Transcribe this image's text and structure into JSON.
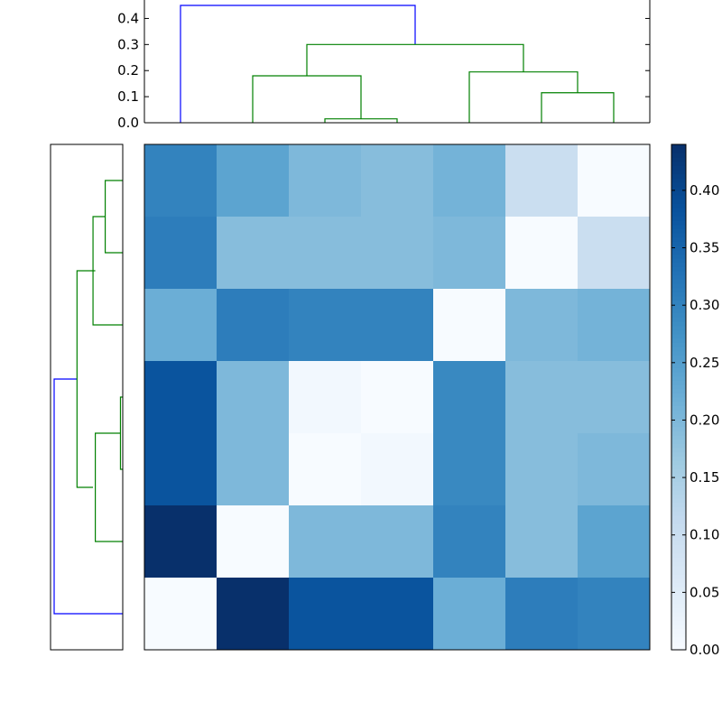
{
  "chart_data": [
    {
      "type": "dendrogram",
      "panel": "top",
      "orientation": "top",
      "y_ticks": [
        "0.0",
        "0.1",
        "0.2",
        "0.3",
        "0.4"
      ],
      "ylim": [
        0,
        0.45
      ],
      "xlim": [
        0,
        7
      ],
      "colors": {
        "above_threshold": "#0000ff",
        "cluster": "#008000"
      },
      "links": [
        {
          "x": [
            0.5,
            0.5,
            3.75,
            3.75
          ],
          "y": [
            0,
            0.45,
            0.45,
            0.3
          ],
          "color": "#0000ff"
        },
        {
          "x": [
            2.25,
            2.25,
            5.25,
            5.25
          ],
          "y": [
            0.18,
            0.3,
            0.3,
            0.195
          ],
          "color": "#008000"
        },
        {
          "x": [
            1.5,
            1.5,
            3.0,
            3.0
          ],
          "y": [
            0,
            0.18,
            0.18,
            0.015
          ],
          "color": "#008000"
        },
        {
          "x": [
            2.5,
            2.5,
            3.5,
            3.5
          ],
          "y": [
            0,
            0.015,
            0.015,
            0
          ],
          "color": "#008000"
        },
        {
          "x": [
            4.5,
            4.5,
            6.0,
            6.0
          ],
          "y": [
            0,
            0.195,
            0.195,
            0.115
          ],
          "color": "#008000"
        },
        {
          "x": [
            5.5,
            5.5,
            6.5,
            6.5
          ],
          "y": [
            0,
            0.115,
            0.115,
            0
          ],
          "color": "#008000"
        }
      ]
    },
    {
      "type": "dendrogram",
      "panel": "left",
      "orientation": "left",
      "xlim": [
        0.45,
        0
      ],
      "ylim": [
        0,
        7
      ],
      "colors": {
        "above_threshold": "#0000ff",
        "cluster": "#008000"
      },
      "links": [
        {
          "x": [
            0,
            0.45,
            0.45,
            0.3
          ],
          "y": [
            0.5,
            0.5,
            3.75,
            3.75
          ],
          "color": "#0000ff"
        },
        {
          "x": [
            0.195,
            0.3,
            0.3,
            0.18
          ],
          "y": [
            2.25,
            2.25,
            5.25,
            5.25
          ],
          "color": "#008000"
        },
        {
          "x": [
            0,
            0.18,
            0.18,
            0.015
          ],
          "y": [
            1.5,
            1.5,
            3.0,
            3.0
          ],
          "color": "#008000"
        },
        {
          "x": [
            0,
            0.015,
            0.015,
            0
          ],
          "y": [
            2.5,
            2.5,
            3.5,
            3.5
          ],
          "color": "#008000"
        },
        {
          "x": [
            0,
            0.195,
            0.195,
            0.115
          ],
          "y": [
            4.5,
            4.5,
            6.0,
            6.0
          ],
          "color": "#008000"
        },
        {
          "x": [
            0,
            0.115,
            0.115,
            0
          ],
          "y": [
            5.5,
            5.5,
            6.5,
            6.5
          ],
          "color": "#008000"
        }
      ]
    },
    {
      "type": "heatmap",
      "colormap": "Blues",
      "vmin": 0,
      "vmax": 0.44,
      "values": [
        [
          0.3,
          0.24,
          0.2,
          0.19,
          0.21,
          0.1,
          0.0
        ],
        [
          0.31,
          0.19,
          0.19,
          0.19,
          0.2,
          0.0,
          0.1
        ],
        [
          0.22,
          0.31,
          0.3,
          0.3,
          0.0,
          0.2,
          0.21
        ],
        [
          0.38,
          0.2,
          0.01,
          0.0,
          0.29,
          0.19,
          0.19
        ],
        [
          0.38,
          0.2,
          0.0,
          0.01,
          0.29,
          0.19,
          0.2
        ],
        [
          0.44,
          0.0,
          0.2,
          0.2,
          0.3,
          0.19,
          0.24
        ],
        [
          0.0,
          0.44,
          0.38,
          0.38,
          0.22,
          0.31,
          0.3
        ]
      ]
    },
    {
      "type": "colorbar",
      "colormap": "Blues",
      "ylim": [
        0,
        0.44
      ],
      "ticks": [
        {
          "v": 0.0,
          "label": "0.00"
        },
        {
          "v": 0.05,
          "label": "0.05"
        },
        {
          "v": 0.1,
          "label": "0.10"
        },
        {
          "v": 0.15,
          "label": "0.15"
        },
        {
          "v": 0.2,
          "label": "0.20"
        },
        {
          "v": 0.25,
          "label": "0.25"
        },
        {
          "v": 0.3,
          "label": "0.30"
        },
        {
          "v": 0.35,
          "label": "0.35"
        },
        {
          "v": 0.4,
          "label": "0.40"
        }
      ]
    }
  ],
  "colormap_stops": [
    [
      0.0,
      "#f7fbff"
    ],
    [
      0.125,
      "#deebf7"
    ],
    [
      0.25,
      "#c6dbef"
    ],
    [
      0.375,
      "#9ecae1"
    ],
    [
      0.5,
      "#6baed6"
    ],
    [
      0.625,
      "#4292c6"
    ],
    [
      0.75,
      "#2171b5"
    ],
    [
      0.875,
      "#08519c"
    ],
    [
      1.0,
      "#08306b"
    ]
  ]
}
